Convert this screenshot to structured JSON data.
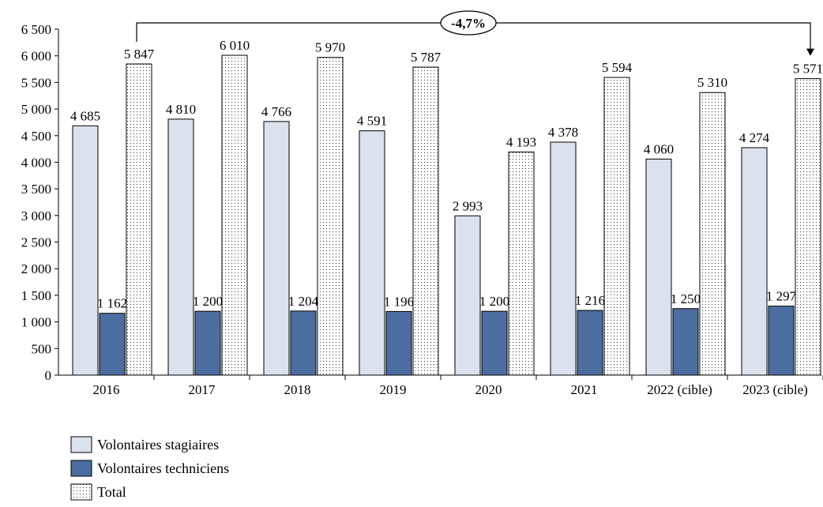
{
  "chart_data": {
    "type": "bar",
    "categories": [
      "2016",
      "2017",
      "2018",
      "2019",
      "2020",
      "2021",
      "2022 (cible)",
      "2023 (cible)"
    ],
    "series": [
      {
        "name": "Volontaires stagiaires",
        "values": [
          4685,
          4810,
          4766,
          4591,
          2993,
          4378,
          4060,
          4274
        ],
        "labels": [
          "4 685",
          "4 810",
          "4 766",
          "4 591",
          "2 993",
          "4 378",
          "4 060",
          "4 274"
        ],
        "color": "#dbe2ee",
        "pattern": "solid"
      },
      {
        "name": "Volontaires techniciens",
        "values": [
          1162,
          1200,
          1204,
          1196,
          1200,
          1216,
          1250,
          1297
        ],
        "labels": [
          "1 162",
          "1 200",
          "1 204",
          "1 196",
          "1 200",
          "1 216",
          "1 250",
          "1 297"
        ],
        "color": "#4c6da0",
        "pattern": "solid"
      },
      {
        "name": "Total",
        "values": [
          5847,
          6010,
          5970,
          5787,
          4193,
          5594,
          5310,
          5571
        ],
        "labels": [
          "5 847",
          "6 010",
          "5 970",
          "5 787",
          "4 193",
          "5 594",
          "5 310",
          "5 571"
        ],
        "color": "#ffffff",
        "pattern": "dotted"
      }
    ],
    "ylim": [
      0,
      6500
    ],
    "yticks": [
      0,
      500,
      1000,
      1500,
      2000,
      2500,
      3000,
      3500,
      4000,
      4500,
      5000,
      5500,
      6000,
      6500
    ],
    "ytick_labels": [
      "0",
      "500",
      "1 000",
      "1 500",
      "2 000",
      "2 500",
      "3 000",
      "3 500",
      "4 000",
      "4 500",
      "5 000",
      "5 500",
      "6 000",
      "6 500"
    ],
    "grid": false,
    "legend_position": "bottom-left",
    "annotation": {
      "text": "-4,7%",
      "from_category": "2016",
      "to_category": "2023 (cible)",
      "series": "Total"
    }
  }
}
